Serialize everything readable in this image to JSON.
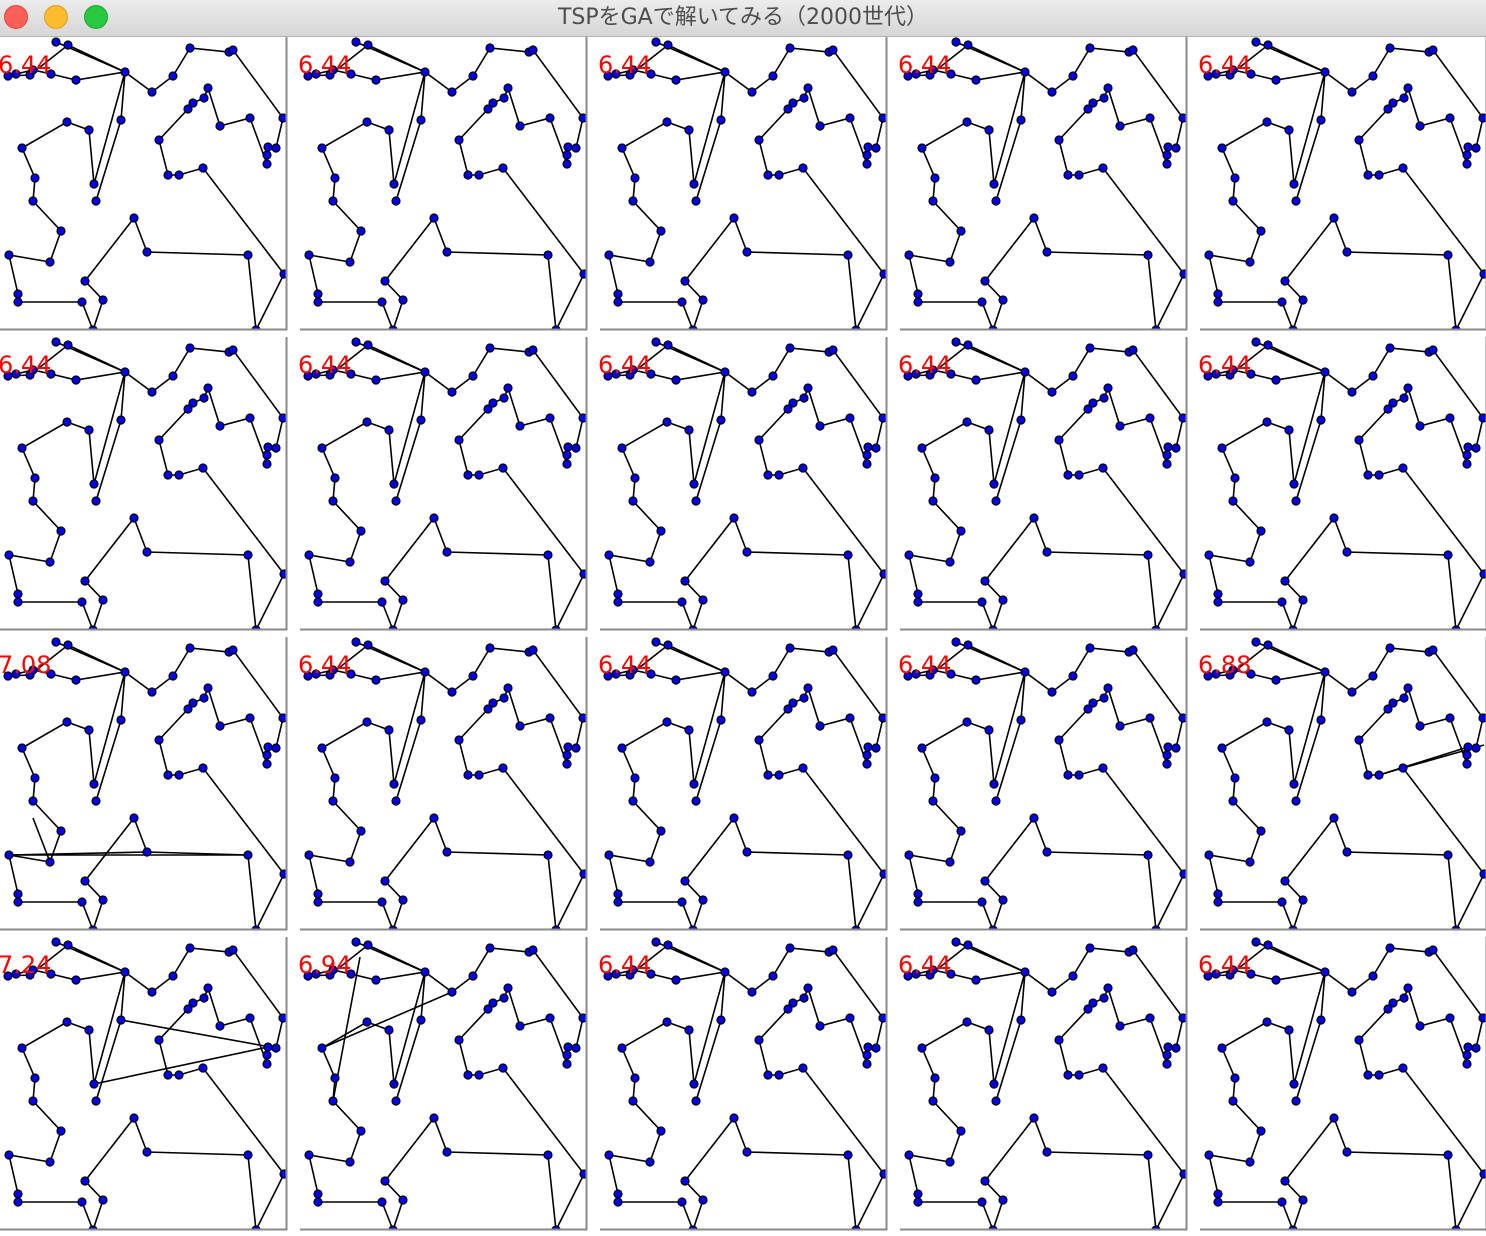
{
  "window": {
    "title": "TSPをGAで解いてみる（2000世代）",
    "controls": [
      "close-button",
      "minimize-button",
      "maximize-button"
    ]
  },
  "grid": {
    "rows": 4,
    "columns": 5
  },
  "colors": {
    "score": "#ff0000",
    "node_fill": "#0000ee",
    "edge": "#000000",
    "frame": "#8a8a8a"
  },
  "panels": [
    {
      "score": "6.44",
      "tour": "best"
    },
    {
      "score": "6.44",
      "tour": "best"
    },
    {
      "score": "6.44",
      "tour": "best"
    },
    {
      "score": "6.44",
      "tour": "best"
    },
    {
      "score": "6.44",
      "tour": "best"
    },
    {
      "score": "6.44",
      "tour": "best"
    },
    {
      "score": "6.44",
      "tour": "best"
    },
    {
      "score": "6.44",
      "tour": "best"
    },
    {
      "score": "6.44",
      "tour": "best"
    },
    {
      "score": "6.44",
      "tour": "best"
    },
    {
      "score": "7.08",
      "tour": "variant-a"
    },
    {
      "score": "6.44",
      "tour": "best"
    },
    {
      "score": "6.44",
      "tour": "best"
    },
    {
      "score": "6.44",
      "tour": "best"
    },
    {
      "score": "6.88",
      "tour": "variant-b"
    },
    {
      "score": "7.24",
      "tour": "variant-c"
    },
    {
      "score": "6.94",
      "tour": "variant-d"
    },
    {
      "score": "6.44",
      "tour": "best"
    },
    {
      "score": "6.44",
      "tour": "best"
    },
    {
      "score": "6.44",
      "tour": "best"
    }
  ]
}
